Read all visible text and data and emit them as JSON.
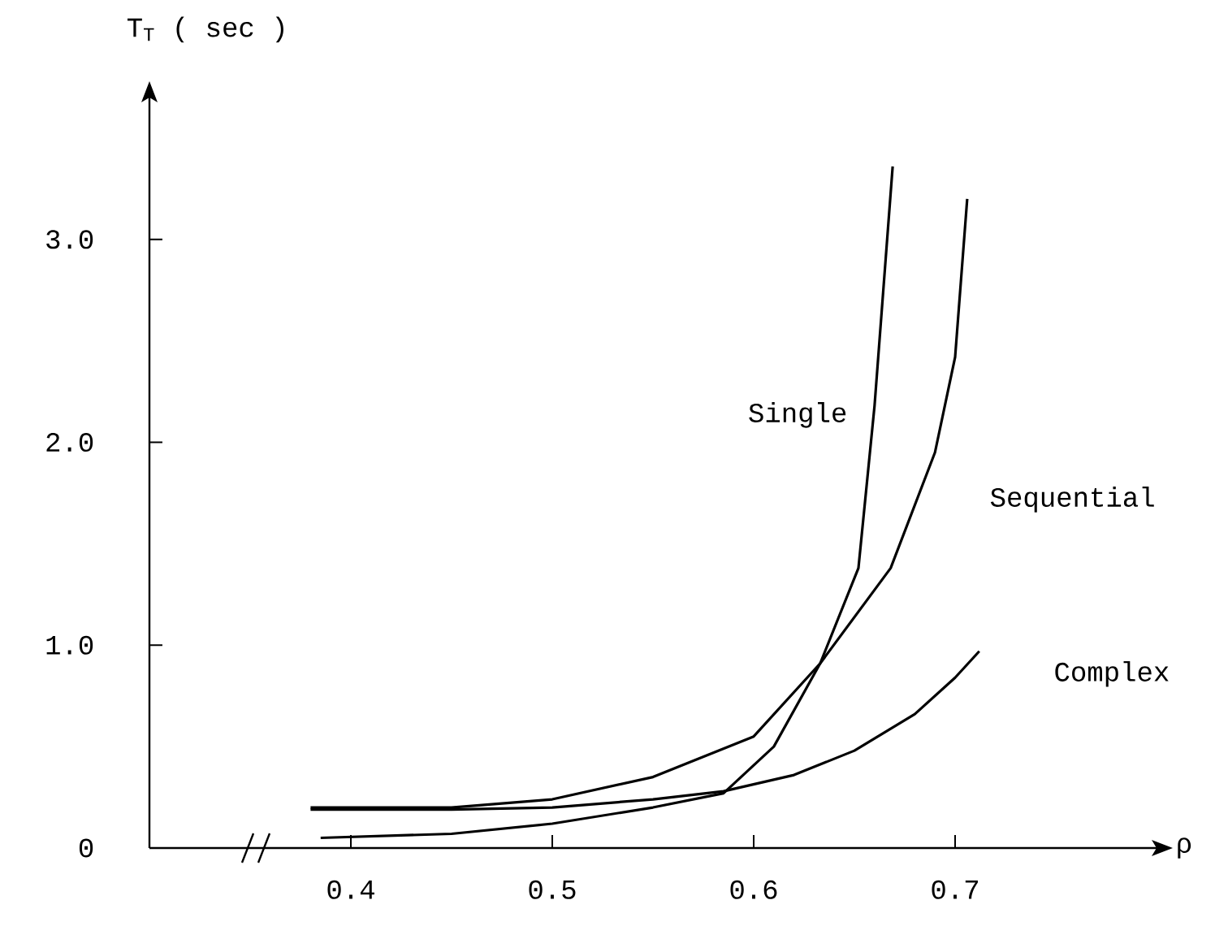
{
  "chart_data": {
    "type": "line",
    "xlabel": "ρ",
    "ylabel": "T$_{T}$ ( sec )",
    "xlim": [
      0.3,
      0.8
    ],
    "ylim": [
      0,
      3.7
    ],
    "xticks": [
      0.4,
      0.5,
      0.6,
      0.7
    ],
    "yticks": [
      {
        "value": 0,
        "label": "0"
      },
      {
        "value": 1,
        "label": "1.0"
      },
      {
        "value": 2,
        "label": "2.0"
      },
      {
        "value": 3,
        "label": "3.0"
      }
    ],
    "grid": false,
    "legend": false,
    "marker": "none",
    "line_style": "solid",
    "series": [
      {
        "name": "Single",
        "color": "#000000",
        "x": [
          0.385,
          0.45,
          0.5,
          0.55,
          0.585,
          0.61,
          0.633,
          0.652,
          0.66,
          0.669
        ],
        "values": [
          0.05,
          0.07,
          0.12,
          0.2,
          0.27,
          0.5,
          0.91,
          1.38,
          2.18,
          3.36
        ]
      },
      {
        "name": "Sequential",
        "color": "#000000",
        "x": [
          0.38,
          0.45,
          0.5,
          0.55,
          0.6,
          0.633,
          0.668,
          0.69,
          0.7,
          0.706
        ],
        "values": [
          0.2,
          0.2,
          0.24,
          0.35,
          0.55,
          0.91,
          1.38,
          1.95,
          2.42,
          3.2
        ]
      },
      {
        "name": "Complex",
        "color": "#000000",
        "x": [
          0.38,
          0.45,
          0.5,
          0.55,
          0.585,
          0.62,
          0.65,
          0.68,
          0.7,
          0.712
        ],
        "values": [
          0.19,
          0.19,
          0.2,
          0.24,
          0.28,
          0.36,
          0.48,
          0.66,
          0.84,
          0.97
        ]
      }
    ]
  }
}
